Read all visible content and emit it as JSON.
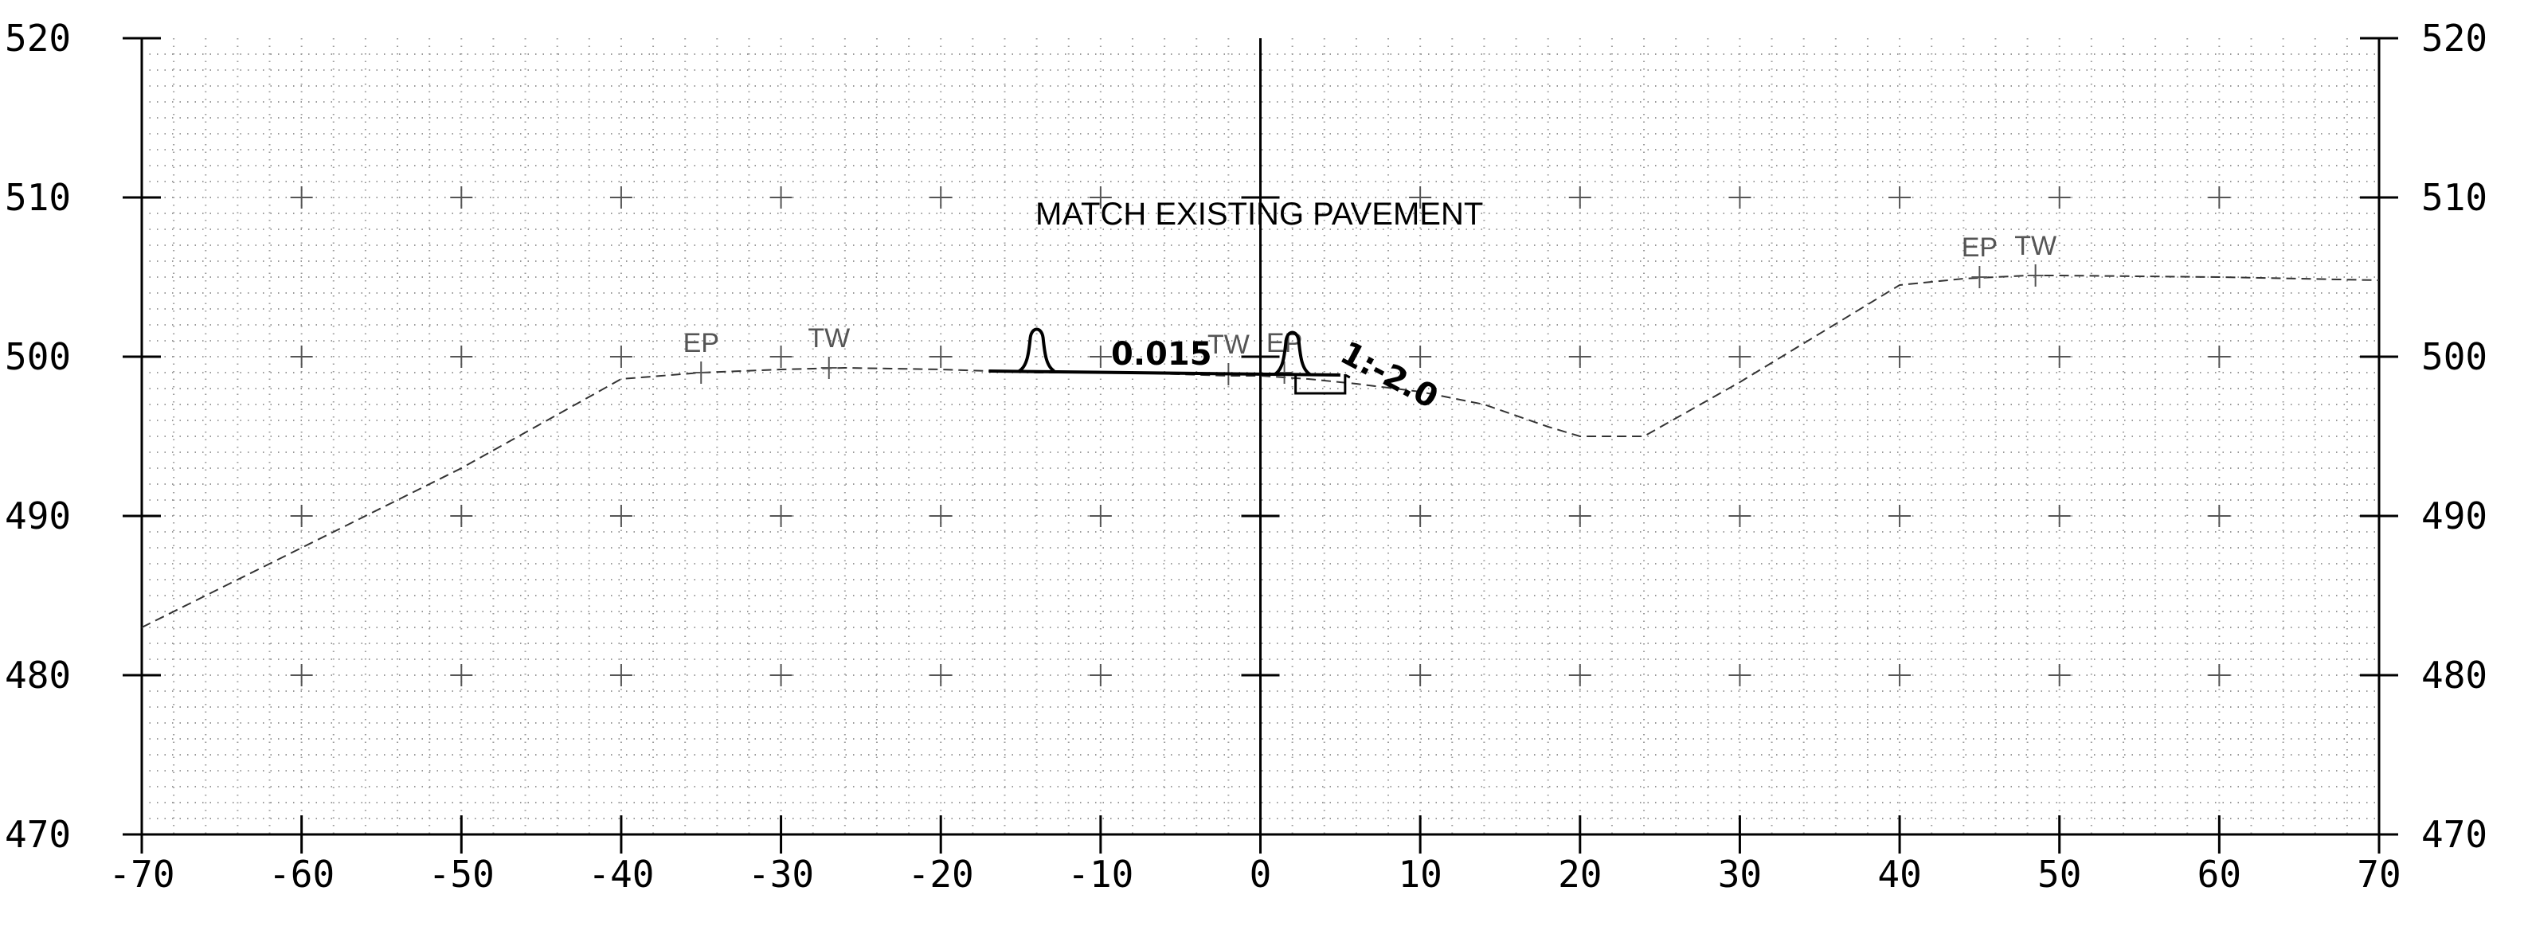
{
  "chart_data": {
    "type": "cross-section",
    "xlim": [
      -70,
      70
    ],
    "ylim": [
      470,
      520
    ],
    "x_ticks": [
      "-70",
      "-60",
      "-50",
      "-40",
      "-30",
      "-20",
      "-10",
      "0",
      "10",
      "20",
      "30",
      "40",
      "50",
      "60",
      "70"
    ],
    "y_ticks": [
      "470",
      "480",
      "490",
      "500",
      "510",
      "520"
    ],
    "x_tick_values": [
      -70,
      -60,
      -50,
      -40,
      -30,
      -20,
      -10,
      0,
      10,
      20,
      30,
      40,
      50,
      60,
      70
    ],
    "y_tick_values": [
      470,
      480,
      490,
      500,
      510,
      520
    ],
    "grid": "dotted fine grid with plus markers",
    "existing_ground": {
      "x": [
        -70,
        -60,
        -50,
        -40,
        -35,
        -30,
        -26,
        -20,
        -14,
        -8,
        -2,
        0,
        3,
        6,
        10,
        14,
        18,
        20,
        24,
        30,
        40,
        44,
        48,
        50,
        60,
        70
      ],
      "y": [
        483,
        488,
        493,
        498.6,
        499.0,
        499.2,
        499.3,
        499.2,
        499.0,
        499.0,
        498.8,
        498.8,
        498.6,
        498.3,
        497.8,
        497.0,
        495.6,
        495.0,
        495.0,
        498.4,
        504.5,
        504.9,
        505.1,
        505.1,
        505.0,
        504.8
      ]
    },
    "point_labels": [
      {
        "text": "EP",
        "x": -35,
        "y": 499.0
      },
      {
        "text": "TW",
        "x": -27,
        "y": 499.3
      },
      {
        "text": "TW",
        "x": -2,
        "y": 498.9
      },
      {
        "text": "EP",
        "x": 1.5,
        "y": 499.0
      },
      {
        "text": "EP",
        "x": 45,
        "y": 505.0
      },
      {
        "text": "TW",
        "x": 48.5,
        "y": 505.1
      }
    ],
    "proposed_pavement": {
      "x": [
        -17,
        5
      ],
      "y": [
        499.1,
        498.85
      ]
    },
    "barriers": [
      {
        "x": -14,
        "y": 499.1
      },
      {
        "x": 2,
        "y": 498.9
      }
    ],
    "note": "MATCH EXISTING PAVEMENT",
    "cross_slope_label": "0.015",
    "side_slope_label": "1:-2.0"
  }
}
